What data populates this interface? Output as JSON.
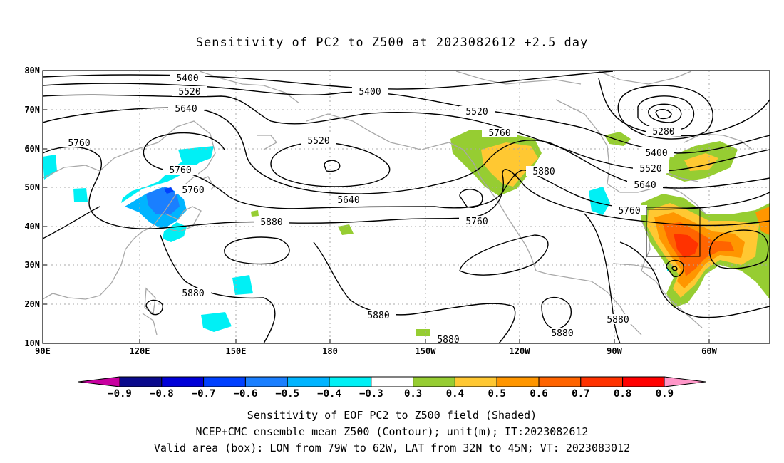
{
  "title": "Sensitivity of PC2 to Z500 at 2023082612 +2.5 day",
  "lat_ticks": [
    "80N",
    "70N",
    "60N",
    "50N",
    "40N",
    "30N",
    "20N",
    "10N"
  ],
  "lon_ticks": [
    "90E",
    "120E",
    "150E",
    "180",
    "150W",
    "120W",
    "90W",
    "60W"
  ],
  "contour_labels": {
    "c5400a": "5400",
    "c5400b": "5400",
    "c5400c": "5400",
    "c5520a": "5520",
    "c5520b": "5520",
    "c5520c": "5520",
    "c5520d": "5520",
    "c5640a": "5640",
    "c5640b": "5640",
    "c5640c": "5640",
    "c5760a": "5760",
    "c5760b": "5760",
    "c5760c": "5760",
    "c5760d": "5760",
    "c5760e": "5760",
    "c5760f": "5760",
    "c5880a": "5880",
    "c5880b": "5880",
    "c5880c": "5880",
    "c5880d": "5880",
    "c5880e": "5880",
    "c5880f": "5880",
    "c5880g": "5880",
    "c5280": "5280"
  },
  "colorbar": {
    "labels": [
      "−0.9",
      "−0.8",
      "−0.7",
      "−0.6",
      "−0.5",
      "−0.4",
      "−0.3",
      "0.3",
      "0.4",
      "0.5",
      "0.6",
      "0.7",
      "0.8",
      "0.9"
    ],
    "colors": [
      "#0a0a8c",
      "#0000d8",
      "#0040ff",
      "#1a7fff",
      "#00b4ff",
      "#00f0f5",
      "#ffffff",
      "#96cd32",
      "#ffc832",
      "#ff9600",
      "#ff6400",
      "#ff3200",
      "#ff0000"
    ],
    "low_end_color": "#c800a0",
    "high_end_color": "#ff96c8"
  },
  "footer": {
    "line1": "Sensitivity of EOF PC2 to Z500 field (Shaded)",
    "line2": "NCEP+CMC ensemble mean Z500 (Contour); unit(m); IT:2023082612",
    "line3": "Valid area (box): LON from 79W to 62W, LAT from 32N to 45N; VT: 2023083012"
  }
}
